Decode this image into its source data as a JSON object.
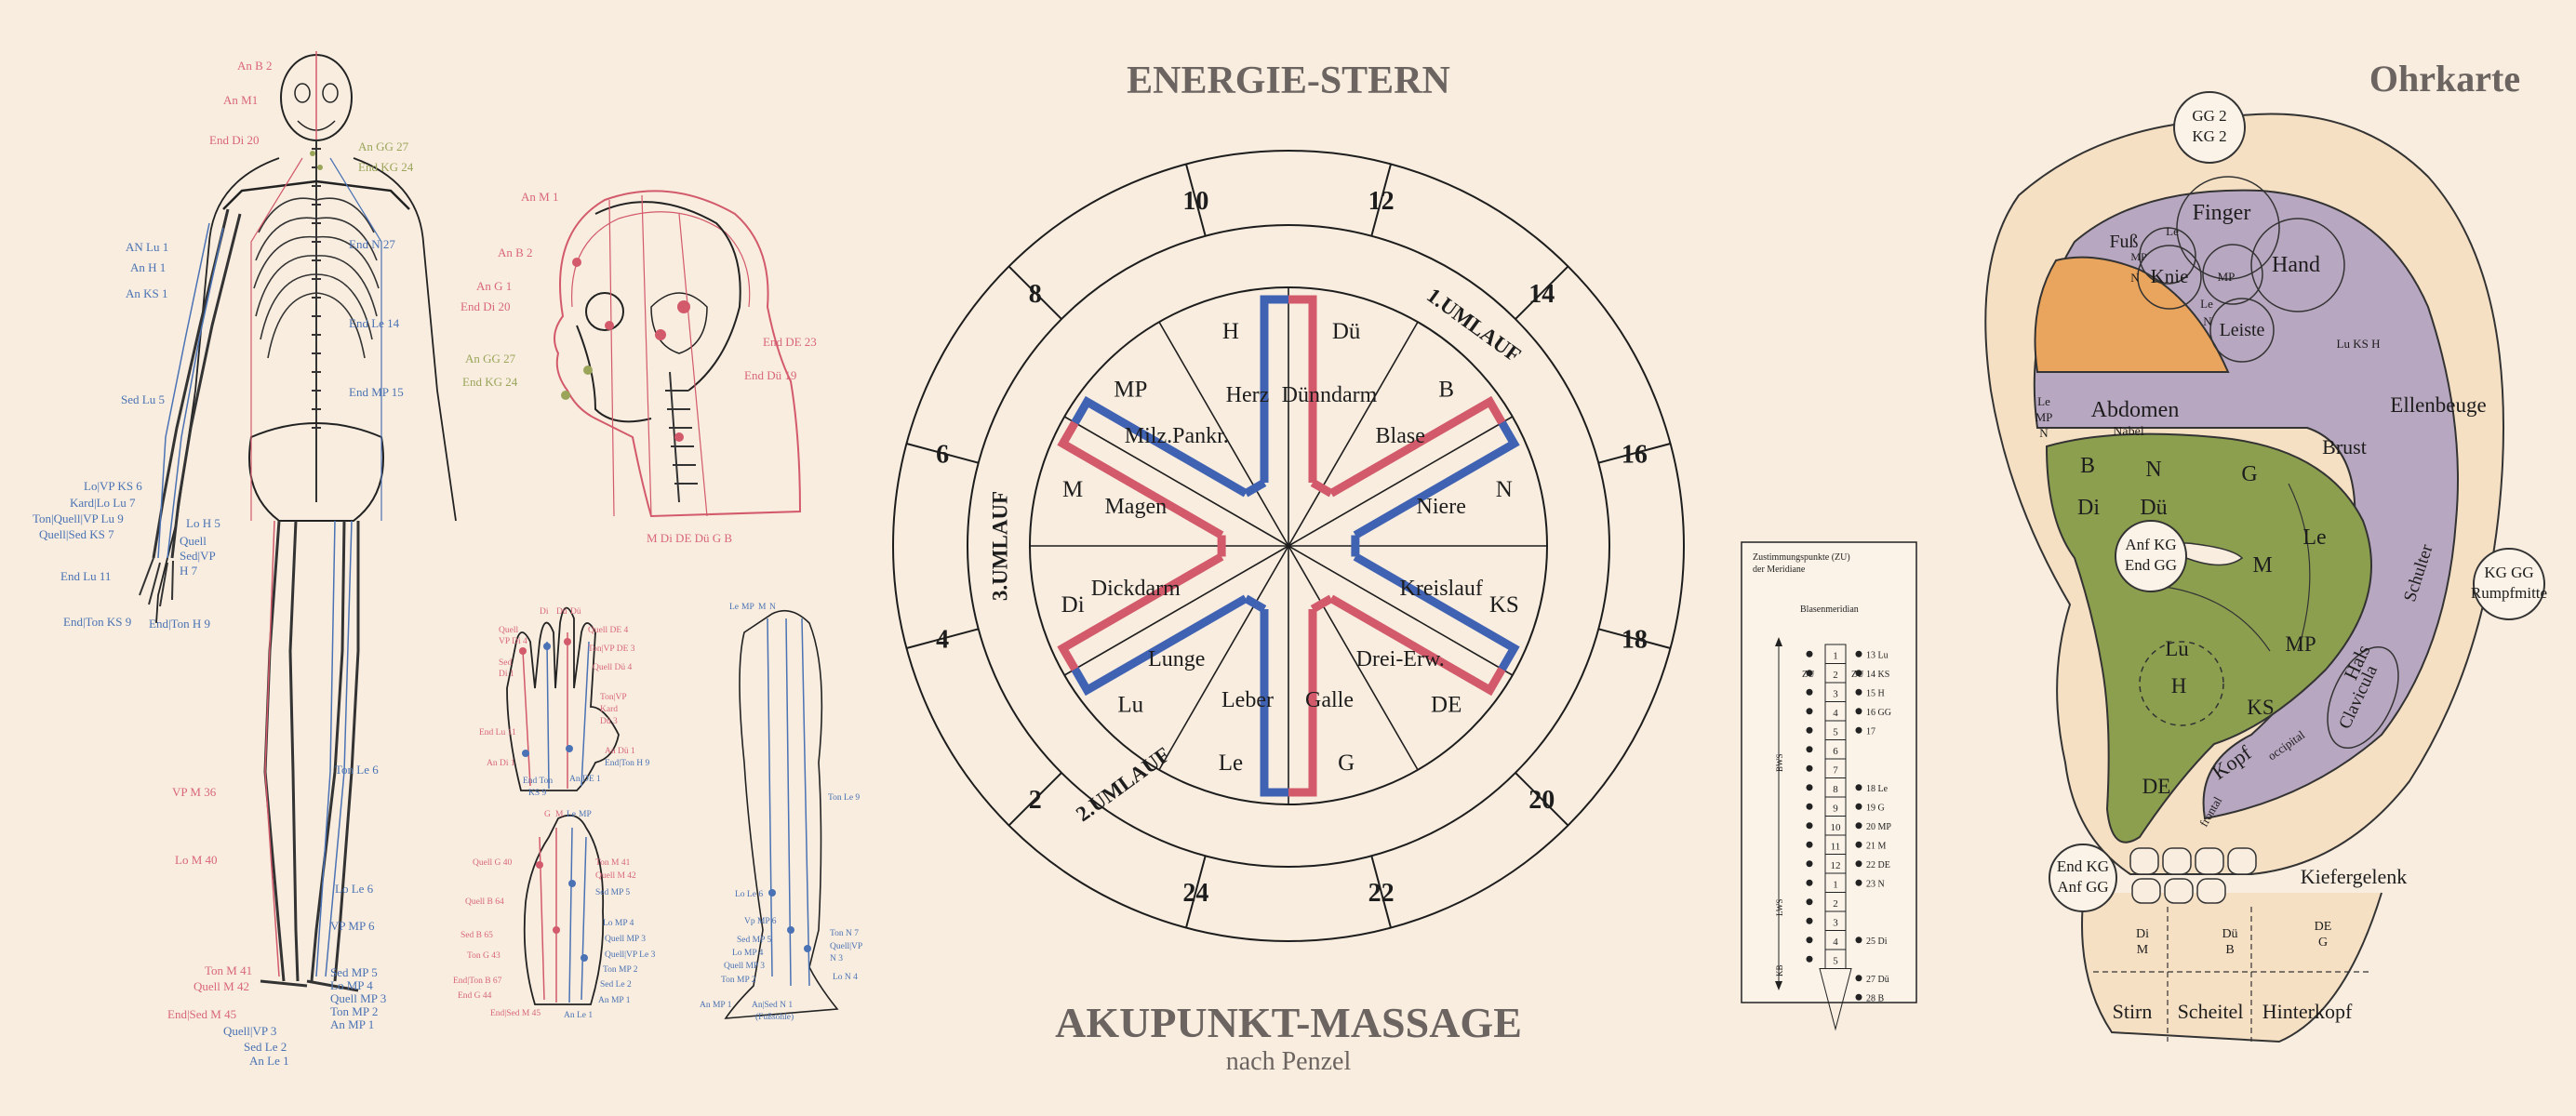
{
  "center": {
    "title": "ENERGIE-STERN",
    "bottom_title": "AKUPUNKT-MASSAGE",
    "subtitle": "nach Penzel"
  },
  "star": {
    "outer_numbers": [
      "12",
      "14",
      "16",
      "18",
      "20",
      "22",
      "24",
      "2",
      "4",
      "6",
      "8",
      "10"
    ],
    "umlauf": [
      "1.UMLAUF",
      "2.UMLAUF",
      "3.UMLAUF"
    ],
    "abbr": [
      "H",
      "Dü",
      "B",
      "N",
      "KS",
      "DE",
      "G",
      "Le",
      "Lu",
      "Di",
      "M",
      "MP"
    ],
    "organs": [
      "Herz",
      "Dünndarm",
      "Blase",
      "Niere",
      "Kreislauf",
      "Drei-Erw.",
      "Galle",
      "Leber",
      "Lunge",
      "Dickdarm",
      "Magen",
      "Milz.Pankr."
    ],
    "colors": {
      "yin": "#d35a6b",
      "yang": "#4062b3",
      "ring": "#1d1d1d"
    }
  },
  "ear": {
    "title": "Ohrkarte",
    "circles": {
      "top": [
        "GG 2",
        "KG 2"
      ],
      "right": [
        "KG GG",
        "Rumpfmitte"
      ],
      "left_mid": [
        "Anf KG",
        "End GG"
      ],
      "left_low": [
        "End KG",
        "Anf GG"
      ]
    },
    "purple_labels": [
      "Finger",
      "Hand",
      "Fuß",
      "MP",
      "Le",
      "Knie",
      "MP",
      "N",
      "Le",
      "N",
      "Leiste",
      "Lu KS H",
      "Abdomen",
      "Nabel",
      "Le",
      "MP",
      "N",
      "Brust",
      "Ellenbeuge",
      "Schulter",
      "Hals",
      "Clavicula",
      "Kopf",
      "occipital",
      "frontal"
    ],
    "green_labels": [
      "B",
      "N",
      "G",
      "Di",
      "Dü",
      "Le",
      "M",
      "Lu",
      "H",
      "MP",
      "KS",
      "DE"
    ],
    "bottom_labels": [
      "Kiefergelenk",
      "Di",
      "M",
      "Dü",
      "B",
      "DE",
      "G",
      "Stirn",
      "Scheitel",
      "Hinterkopf"
    ],
    "colors": {
      "purple": "#b8a7c0",
      "green": "#8c9f4f",
      "orange": "#e9a45d",
      "skin": "#f6e0c4"
    }
  },
  "bladder": {
    "title_line1": "Zustimmungspunkte (ZU)",
    "title_line2": "der Meridiane",
    "col_title": "Blasenmeridian",
    "zu": "ZU",
    "segments": [
      "BWS",
      "LWS",
      "KB"
    ],
    "numbers": [
      "1",
      "2",
      "3",
      "4",
      "5",
      "6",
      "7",
      "8",
      "9",
      "10",
      "11",
      "12",
      "1",
      "2",
      "3",
      "4",
      "5"
    ],
    "points": [
      "13 Lu",
      "14 KS",
      "15 H",
      "16 GG",
      "17",
      "18 Le",
      "19 G",
      "20 MP",
      "21 M",
      "22 DE",
      "23 N",
      "25 Di",
      "27 Dü",
      "28 B"
    ]
  },
  "body": {
    "labels_red": [
      "An B 2",
      "An M1",
      "End Di 20",
      "VP M 36",
      "Lo M 40",
      "Ton M 41",
      "Quell M 42",
      "End|Sed M 45"
    ],
    "labels_olive": [
      "An GG 27",
      "End KG 24"
    ],
    "labels_blue_left": [
      "AN Lu 1",
      "An H 1",
      "An KS 1",
      "Sed Lu 5",
      "Lo|VP KS 6",
      "Kard|Lo Lu 7",
      "Ton|Quell|VP Lu 9",
      "Quell|Sed KS 7",
      "Lo H 5",
      "Quell",
      "Sed|VP",
      "H 7",
      "End Lu 11",
      "End|Ton KS 9",
      "End|Ton H 9"
    ],
    "labels_blue_right": [
      "End N 27",
      "End Le 14",
      "End MP 15",
      "Ton Le 6",
      "Lo Le 6",
      "VP MP 6",
      "Sed MP 5",
      "Lo MP 4",
      "Quell MP 3",
      "Ton MP 2",
      "An MP 1"
    ],
    "labels_blue_bottom": [
      "Quell|VP 3",
      "Sed Le 2",
      "An Le 1"
    ]
  },
  "head": {
    "labels_left": [
      "An M 1",
      "An B 2",
      "An G 1",
      "End Di 20",
      "An GG 27",
      "End KG 24"
    ],
    "labels_right": [
      "End DE 23",
      "End Dü 19"
    ],
    "bottom": "M Di DE Dü G B"
  },
  "hand": {
    "labels": [
      "Di",
      "Dü",
      "Dü",
      "Quell",
      "VP Di 4",
      "Sed",
      "Di 1",
      "Quell DE 4",
      "Ton|VP DE 3",
      "Quell Dü 4",
      "Ton|VP",
      "Kard",
      "Dü 3",
      "End Lu 11",
      "An Di 1",
      "End Ton",
      "KS 9",
      "An Dü 1",
      "End|Ton H 9",
      "An DE 1"
    ]
  },
  "foot": {
    "labels": [
      "G",
      "M",
      "Le",
      "MP",
      "Quell G 40",
      "Ton M 41",
      "Quell M 42",
      "Quell B 64",
      "Sed MP 5",
      "Sed B 65",
      "Lo MP 4",
      "Ton G 43",
      "Quell MP 3",
      "Quell|VP Le 3",
      "End|Ton B 67",
      "Ton MP 2",
      "End G 44",
      "Sed Le 2",
      "End|Sed M 45",
      "An MP 1",
      "An Le 1"
    ]
  },
  "leg": {
    "labels": [
      "Le",
      "MP",
      "M",
      "N",
      "Ton Le 9",
      "Lo Le 6",
      "Vp MP 6",
      "Sed MP 5",
      "Lo MP 4",
      "Quell MP 3",
      "Ton MP 2",
      "An MP 1",
      "Ton N 7",
      "Quell|VP",
      "N 3",
      "Lo N 4",
      "An|Sed N 1",
      "(Fußsohle)"
    ]
  }
}
